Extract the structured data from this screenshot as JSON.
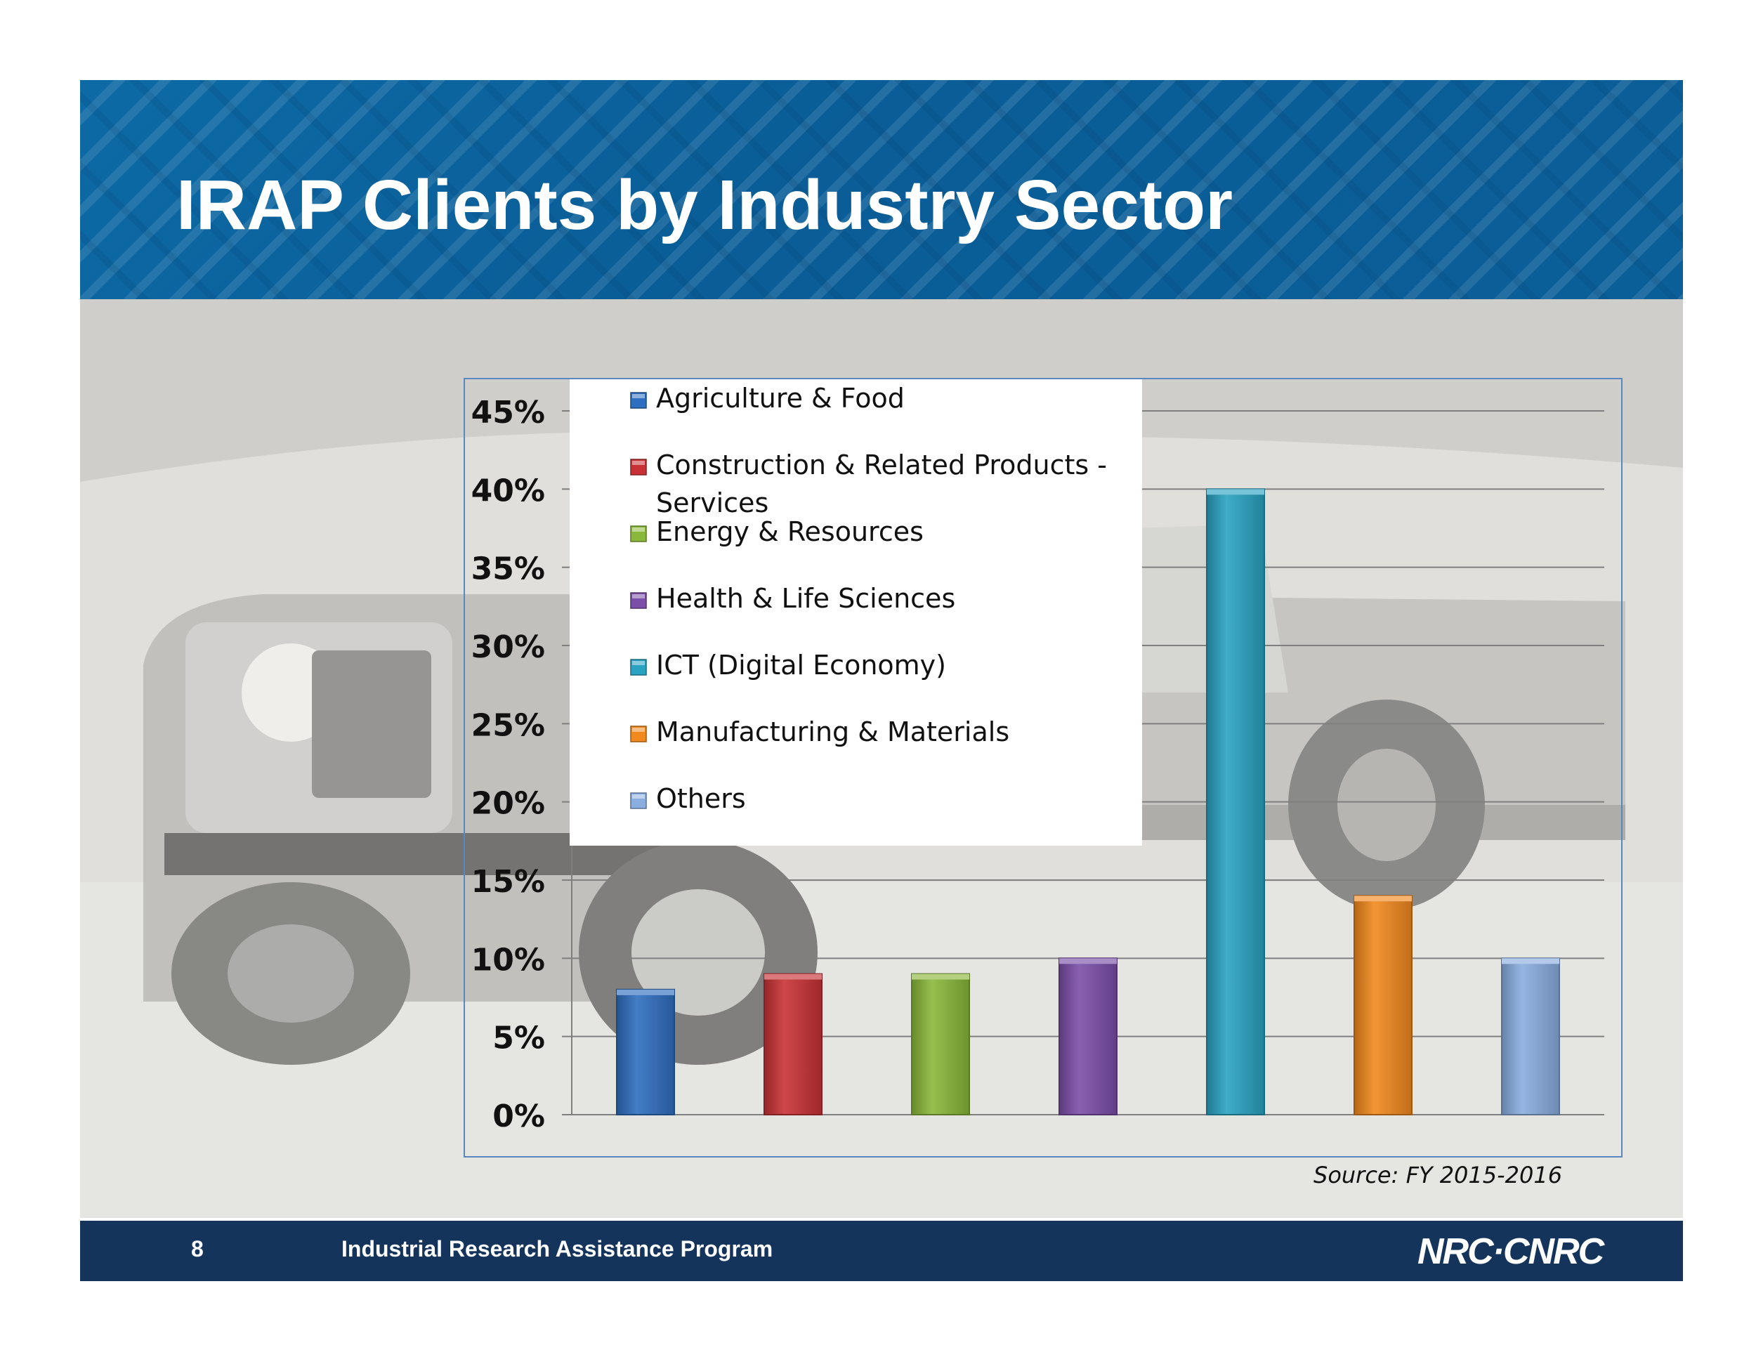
{
  "slide": {
    "title": "IRAP Clients by Industry Sector",
    "source": "Source: FY 2015-2016",
    "footer": {
      "page_number": "8",
      "program": "Industrial Research Assistance Program",
      "logo": "NRC·CNRC"
    },
    "colors": {
      "header": "#0b619c",
      "footer": "#14345b",
      "title_text": "#ffffff"
    }
  },
  "chart_data": {
    "type": "bar",
    "categories": [
      "Agriculture & Food",
      "Construction & Related Products - Services",
      "Energy & Resources",
      "Health & Life Sciences",
      "ICT (Digital Economy)",
      "Manufacturing & Materials",
      "Others"
    ],
    "legend_labels": [
      [
        "Agriculture & Food"
      ],
      [
        "Construction & Related Products -",
        "Services"
      ],
      [
        "Energy & Resources"
      ],
      [
        "Health & Life Sciences"
      ],
      [
        "ICT (Digital Economy)"
      ],
      [
        "Manufacturing & Materials"
      ],
      [
        "Others"
      ]
    ],
    "values": [
      8,
      9,
      9,
      10,
      40,
      14,
      10
    ],
    "colors": [
      "#2f6fc0",
      "#c83236",
      "#8ab83a",
      "#7b4fa8",
      "#2aa3c2",
      "#f2891f",
      "#8aaee0"
    ],
    "title": "",
    "xlabel": "",
    "ylabel": "",
    "ylim": [
      0,
      45
    ],
    "ytick_step": 5,
    "ytick_labels": [
      "0%",
      "5%",
      "10%",
      "15%",
      "20%",
      "25%",
      "30%",
      "35%",
      "40%",
      "45%"
    ],
    "grid": true,
    "legend_position": "top-left"
  }
}
